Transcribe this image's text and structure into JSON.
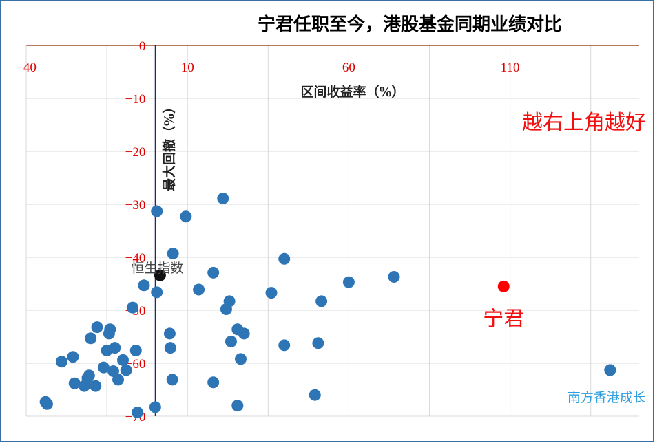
{
  "chart_data": {
    "type": "scatter",
    "title": "宁君任职至今，港股基金同期业绩对比",
    "xlabel": "区间收益率（%）",
    "ylabel": "最大回撤（%）",
    "xlim": [
      -40,
      150
    ],
    "ylim": [
      -70,
      0
    ],
    "xticks": [
      -40,
      10,
      60,
      110
    ],
    "yticks": [
      0,
      -10,
      -20,
      -30,
      -40,
      -50,
      -60,
      -70
    ],
    "grid": true,
    "colors": {
      "default": "#2e75b6",
      "highlight": "#ff0000",
      "index": "#111111",
      "axis_tick": "#e00000",
      "axis_line": "#8b2500",
      "note": "#f01010",
      "fund_label": "#2e9ee0"
    },
    "annotation": "越右上角越好",
    "points": [
      {
        "x": -34,
        "y": -67.3
      },
      {
        "x": -33.5,
        "y": -67.7
      },
      {
        "x": -29,
        "y": -59.7
      },
      {
        "x": -25.5,
        "y": -58.8
      },
      {
        "x": -25,
        "y": -63.8
      },
      {
        "x": -22,
        "y": -64.3
      },
      {
        "x": -20.5,
        "y": -62.3
      },
      {
        "x": -21,
        "y": -62.8
      },
      {
        "x": -20,
        "y": -55.3
      },
      {
        "x": -18.5,
        "y": -64.3
      },
      {
        "x": -18,
        "y": -53.2
      },
      {
        "x": -16,
        "y": -60.8
      },
      {
        "x": -15,
        "y": -57.6
      },
      {
        "x": -14,
        "y": -53.6
      },
      {
        "x": -14.3,
        "y": -54.4
      },
      {
        "x": -13,
        "y": -61.5
      },
      {
        "x": -12.5,
        "y": -57.1
      },
      {
        "x": -11.5,
        "y": -63.1
      },
      {
        "x": -10,
        "y": -59.4
      },
      {
        "x": -9,
        "y": -61.3
      },
      {
        "x": -7,
        "y": -49.5
      },
      {
        "x": -6,
        "y": -57.6
      },
      {
        "x": -5.5,
        "y": -69.3
      },
      {
        "x": -3.5,
        "y": -45.3
      },
      {
        "x": 0.5,
        "y": -31.3
      },
      {
        "x": 0.5,
        "y": -46.6
      },
      {
        "x": 0,
        "y": -68.3
      },
      {
        "x": 4.5,
        "y": -54.4
      },
      {
        "x": 4.7,
        "y": -57.1
      },
      {
        "x": 5.5,
        "y": -39.3
      },
      {
        "x": 5.3,
        "y": -63.1
      },
      {
        "x": 9.5,
        "y": -32.3
      },
      {
        "x": 13.5,
        "y": -46.1
      },
      {
        "x": 18,
        "y": -42.9
      },
      {
        "x": 18,
        "y": -63.6
      },
      {
        "x": 21,
        "y": -28.9
      },
      {
        "x": 22,
        "y": -49.8
      },
      {
        "x": 23,
        "y": -48.3
      },
      {
        "x": 23.5,
        "y": -55.9
      },
      {
        "x": 25.5,
        "y": -53.6
      },
      {
        "x": 26.5,
        "y": -59.2
      },
      {
        "x": 27.5,
        "y": -54.4
      },
      {
        "x": 25.5,
        "y": -68
      },
      {
        "x": 36,
        "y": -46.7
      },
      {
        "x": 40,
        "y": -40.3
      },
      {
        "x": 40,
        "y": -56.6
      },
      {
        "x": 49.5,
        "y": -66
      },
      {
        "x": 50.5,
        "y": -56.2
      },
      {
        "x": 51.5,
        "y": -48.3
      },
      {
        "x": 60,
        "y": -44.7
      },
      {
        "x": 74,
        "y": -43.7
      },
      {
        "x": 141,
        "y": -61.3
      },
      {
        "x": 1.5,
        "y": -43.4,
        "label": "恒生指数",
        "kind": "index"
      },
      {
        "x": 108,
        "y": -45.5,
        "label": "宁君",
        "kind": "highlight"
      },
      {
        "x": 141,
        "y": -61.3,
        "label": "南方香港成长",
        "kind": "labeled"
      }
    ]
  }
}
